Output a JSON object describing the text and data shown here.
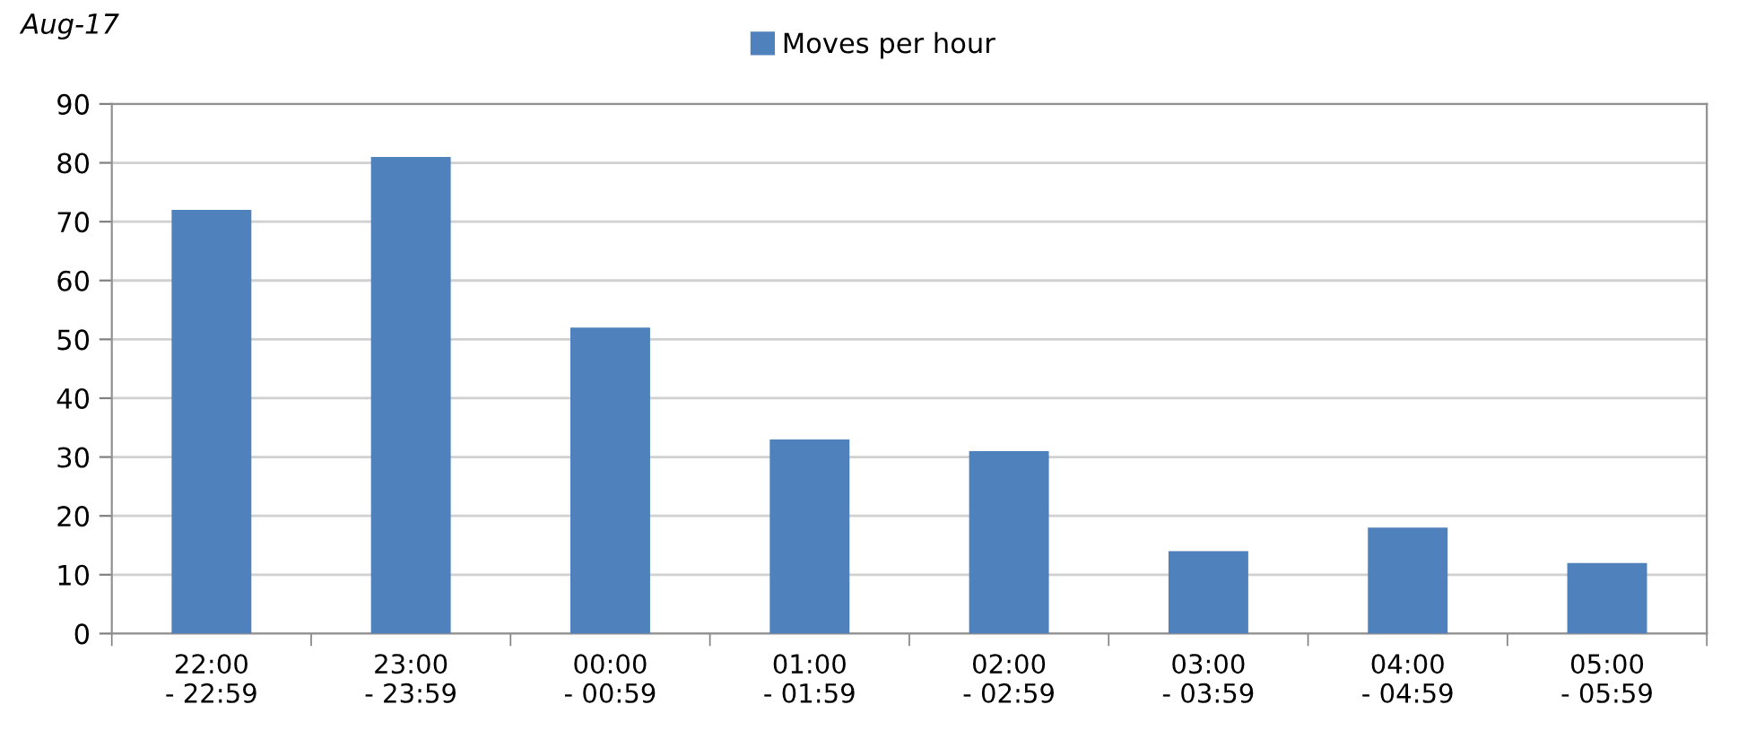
{
  "chart_data": {
    "type": "bar",
    "title": "Aug-17",
    "categories": [
      "22:00\n- 22:59",
      "23:00\n- 23:59",
      "00:00\n- 00:59",
      "01:00\n- 01:59",
      "02:00\n- 02:59",
      "03:00\n- 03:59",
      "04:00\n- 04:59",
      "05:00\n- 05:59"
    ],
    "series": [
      {
        "name": "Moves per hour",
        "color": "#4f81bd",
        "values": [
          72,
          81,
          52,
          33,
          31,
          14,
          18,
          12
        ]
      }
    ],
    "ylim": [
      0,
      90
    ],
    "yticks": [
      0,
      10,
      20,
      30,
      40,
      50,
      60,
      70,
      80,
      90
    ],
    "grid": "y",
    "legend": "top"
  }
}
